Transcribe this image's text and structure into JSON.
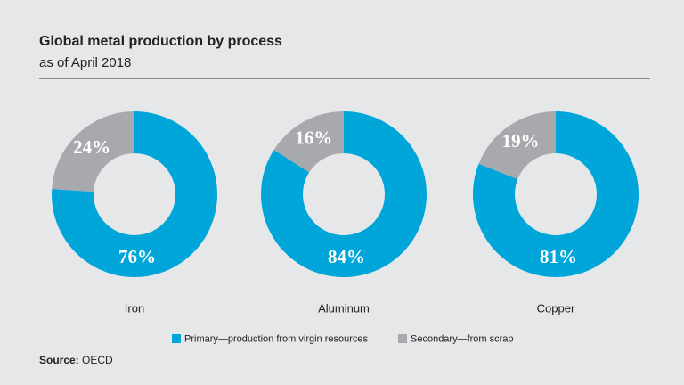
{
  "header": {
    "title": "Global metal production by process",
    "subtitle": "as of April 2018"
  },
  "chart_data": [
    {
      "type": "donut",
      "label": "Iron",
      "values": [
        76,
        24
      ],
      "value_labels": [
        "76%",
        "24%"
      ]
    },
    {
      "type": "donut",
      "label": "Aluminum",
      "values": [
        84,
        16
      ],
      "value_labels": [
        "84%",
        "16%"
      ]
    },
    {
      "type": "donut",
      "label": "Copper",
      "values": [
        81,
        19
      ],
      "value_labels": [
        "81%",
        "19%"
      ]
    }
  ],
  "legend": {
    "items": [
      {
        "name": "Primary—production from virgin resources",
        "color": "#00a6da"
      },
      {
        "name": "Secondary—from scrap",
        "color": "#a7a9ac"
      }
    ]
  },
  "source": {
    "label": "Source:",
    "text": "OECD"
  }
}
